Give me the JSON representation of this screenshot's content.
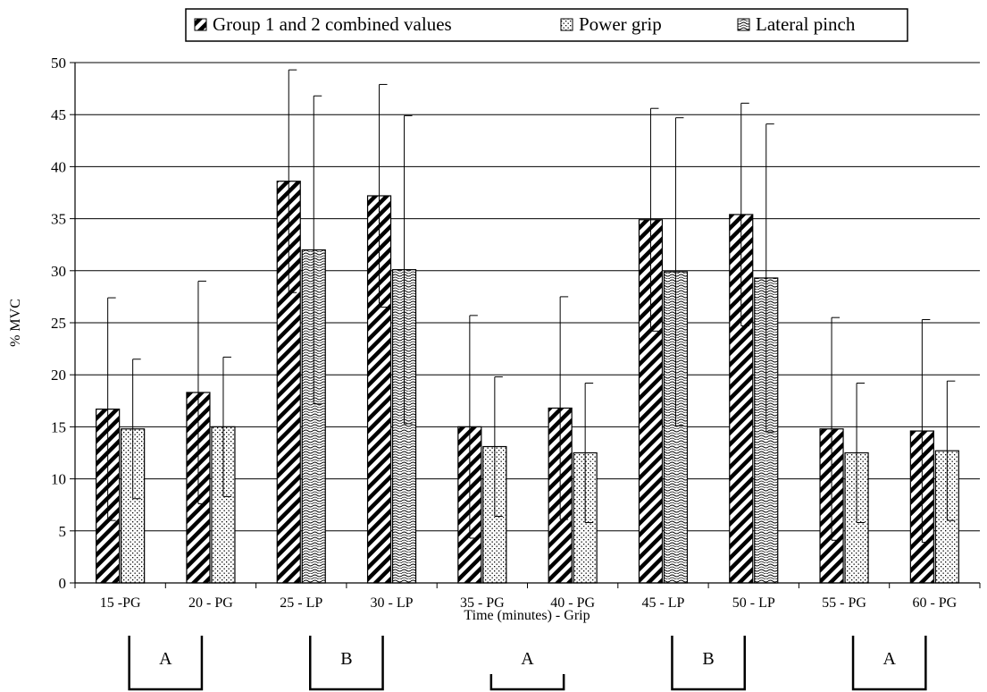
{
  "chart_data": {
    "type": "bar",
    "xlabel": "Time (minutes) - Grip",
    "ylabel": "% MVC",
    "ylim": [
      0,
      50
    ],
    "yticks": [
      0,
      5,
      10,
      15,
      20,
      25,
      30,
      35,
      40,
      45,
      50
    ],
    "grid": "horizontal",
    "legend_position": "top",
    "categories": [
      "15 -PG",
      "20 - PG",
      "25 - LP",
      "30 - LP",
      "35 - PG",
      "40 - PG",
      "45 - LP",
      "50 - LP",
      "55 - PG",
      "60 - PG"
    ],
    "legend": [
      {
        "name": "Group 1 and 2 combined values",
        "pattern": "diagonal-hatch"
      },
      {
        "name": "Power grip",
        "pattern": "dots"
      },
      {
        "name": "Lateral pinch",
        "pattern": "waves"
      }
    ],
    "series": [
      {
        "name": "Group 1 and 2 combined values",
        "pattern": "diagonal-hatch",
        "values": [
          16.7,
          18.3,
          38.6,
          37.2,
          15.0,
          16.8,
          34.9,
          35.4,
          14.8,
          14.6
        ],
        "error": [
          10.7,
          10.7,
          10.7,
          10.7,
          10.7,
          10.7,
          10.7,
          10.7,
          10.7,
          10.7
        ]
      },
      {
        "name": "Power grip / Lateral pinch",
        "values": [
          14.8,
          15.0,
          32.0,
          30.1,
          13.1,
          12.5,
          29.9,
          29.3,
          12.5,
          12.7
        ],
        "error": [
          6.7,
          6.7,
          14.8,
          14.8,
          6.7,
          6.7,
          14.8,
          14.8,
          6.7,
          6.7
        ],
        "patterns": [
          "dots",
          "dots",
          "waves",
          "waves",
          "dots",
          "dots",
          "waves",
          "waves",
          "dots",
          "dots"
        ]
      }
    ],
    "groups": [
      {
        "label": "A",
        "from": 0,
        "to": 1
      },
      {
        "label": "B",
        "from": 2,
        "to": 3
      },
      {
        "label": "A",
        "from": 4,
        "to": 5
      },
      {
        "label": "B",
        "from": 6,
        "to": 7
      },
      {
        "label": "A",
        "from": 8,
        "to": 9
      }
    ]
  }
}
